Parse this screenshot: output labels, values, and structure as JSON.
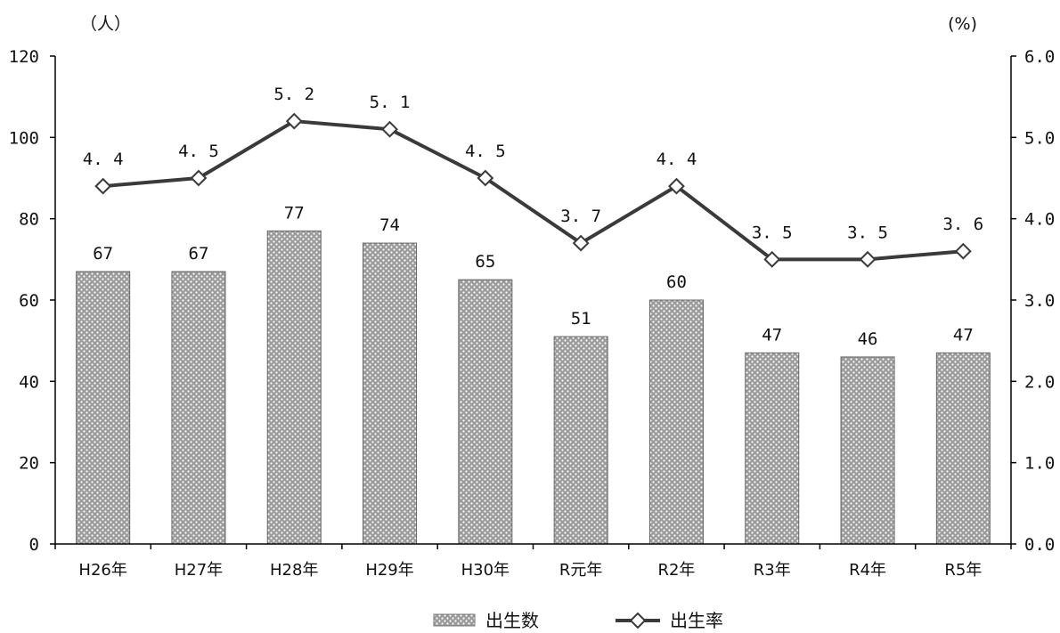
{
  "chart_data": {
    "type": "bar",
    "categories": [
      "H26年",
      "H27年",
      "H28年",
      "H29年",
      "H30年",
      "R元年",
      "R2年",
      "R3年",
      "R4年",
      "R5年"
    ],
    "series": [
      {
        "name": "出生数",
        "type": "bar",
        "axis": "left",
        "values": [
          67,
          67,
          77,
          74,
          65,
          51,
          60,
          47,
          46,
          47
        ],
        "labels": [
          "67",
          "67",
          "77",
          "74",
          "65",
          "51",
          "60",
          "47",
          "46",
          "47"
        ]
      },
      {
        "name": "出生率",
        "type": "line",
        "axis": "right",
        "marker": "diamond",
        "values": [
          4.4,
          4.5,
          5.2,
          5.1,
          4.5,
          3.7,
          4.4,
          3.5,
          3.5,
          3.6
        ],
        "labels": [
          "4. 4",
          "4. 5",
          "5. 2",
          "5. 1",
          "4. 5",
          "3. 7",
          "4. 4",
          "3. 5",
          "3. 5",
          "3. 6"
        ]
      }
    ],
    "y_left": {
      "unit": "（人）",
      "ylim": [
        0,
        120
      ],
      "ticks": [
        0,
        20,
        40,
        60,
        80,
        100,
        120
      ],
      "tick_labels": [
        "0",
        "20",
        "40",
        "60",
        "80",
        "100",
        "120"
      ]
    },
    "y_right": {
      "unit": "(%)",
      "ylim": [
        0,
        6
      ],
      "ticks": [
        0,
        1,
        2,
        3,
        4,
        5,
        6
      ],
      "tick_labels": [
        "0.0",
        "1.0",
        "2.0",
        "3.0",
        "4.0",
        "5.0",
        "6.0"
      ]
    },
    "grid": false,
    "legend": "bottom-center",
    "colors": {
      "bar_fill": "#a0a0a0",
      "bar_pattern_dot": "#ffffff",
      "line": "#3a3a3a",
      "marker_fill": "#ffffff",
      "axis": "#000000"
    }
  }
}
